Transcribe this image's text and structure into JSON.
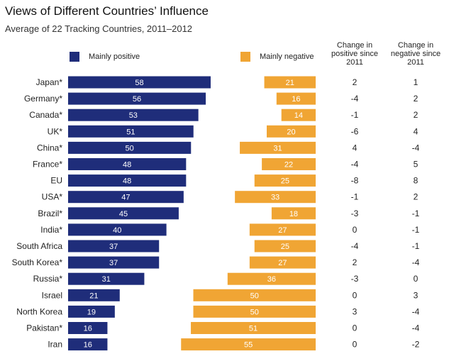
{
  "title": "Views of Different Countries’ Influence",
  "subtitle": "Average of 22 Tracking Countries, 2011–2012",
  "legend": {
    "positive": "Mainly positive",
    "negative": "Mainly negative"
  },
  "columns": {
    "change_positive": "Change in positive since 2011",
    "change_negative": "Change in negative since 2011"
  },
  "colors": {
    "positive": "#1f2d7a",
    "negative": "#f0a534"
  },
  "chart_data": {
    "type": "bar",
    "title": "Views of Different Countries’ Influence",
    "subtitle": "Average of 22 Tracking Countries, 2011–2012",
    "categories": [
      "Japan*",
      "Germany*",
      "Canada*",
      "UK*",
      "China*",
      "France*",
      "EU",
      "USA*",
      "Brazil*",
      "India*",
      "South Africa",
      "South Korea*",
      "Russia*",
      "Israel",
      "North Korea",
      "Pakistan*",
      "Iran"
    ],
    "series": [
      {
        "name": "Mainly positive",
        "values": [
          58,
          56,
          53,
          51,
          50,
          48,
          48,
          47,
          45,
          40,
          37,
          37,
          31,
          21,
          19,
          16,
          16
        ]
      },
      {
        "name": "Mainly negative",
        "values": [
          21,
          16,
          14,
          20,
          31,
          22,
          25,
          33,
          18,
          27,
          25,
          27,
          36,
          50,
          50,
          51,
          55
        ]
      }
    ],
    "change_positive": [
      "2",
      "-4",
      "-1",
      "-6",
      "4",
      "-4",
      "-8",
      "-1",
      "-3",
      "0",
      "-4",
      "2",
      "-3",
      "0",
      "3",
      "0",
      "0"
    ],
    "change_negative": [
      "1",
      "2",
      "2",
      "4",
      "-4",
      "5",
      "8",
      "2",
      "-1",
      "-1",
      "-1",
      "-4",
      "0",
      "3",
      "-4",
      "-4",
      "-2"
    ],
    "legend_position": "top",
    "grid": false
  }
}
